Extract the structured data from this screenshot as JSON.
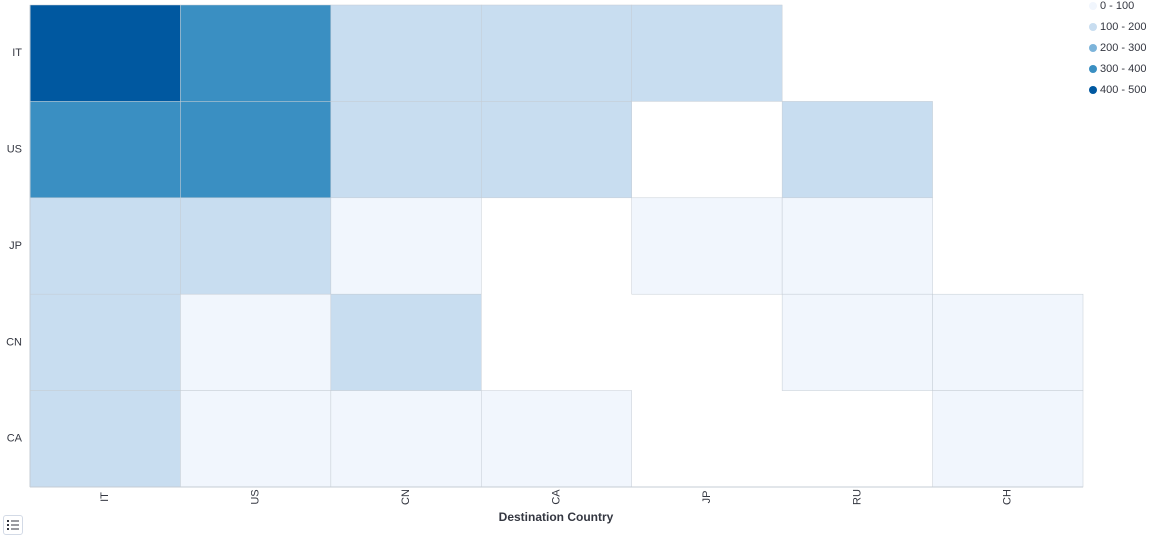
{
  "chart_data": {
    "type": "heatmap",
    "x_label": "Destination Country",
    "x_categories": [
      "IT",
      "US",
      "CN",
      "CA",
      "JP",
      "RU",
      "CH"
    ],
    "y_categories": [
      "IT",
      "US",
      "JP",
      "CN",
      "CA"
    ],
    "values": [
      [
        450,
        350,
        150,
        150,
        150,
        null,
        null
      ],
      [
        350,
        350,
        150,
        150,
        null,
        150,
        null
      ],
      [
        150,
        150,
        50,
        null,
        50,
        50,
        null
      ],
      [
        150,
        50,
        150,
        null,
        null,
        50,
        50
      ],
      [
        150,
        50,
        50,
        50,
        null,
        null,
        50
      ]
    ],
    "color_ranges": [
      {
        "min": 0,
        "max": 100,
        "label": "0 - 100",
        "color": "#f1f6fd"
      },
      {
        "min": 100,
        "max": 200,
        "label": "100 - 200",
        "color": "#c8ddf0"
      },
      {
        "min": 200,
        "max": 300,
        "label": "200 - 300",
        "color": "#7db4da"
      },
      {
        "min": 300,
        "max": 400,
        "label": "300 - 400",
        "color": "#3a8fc2"
      },
      {
        "min": 400,
        "max": 500,
        "label": "400 - 500",
        "color": "#0058a0"
      }
    ]
  }
}
